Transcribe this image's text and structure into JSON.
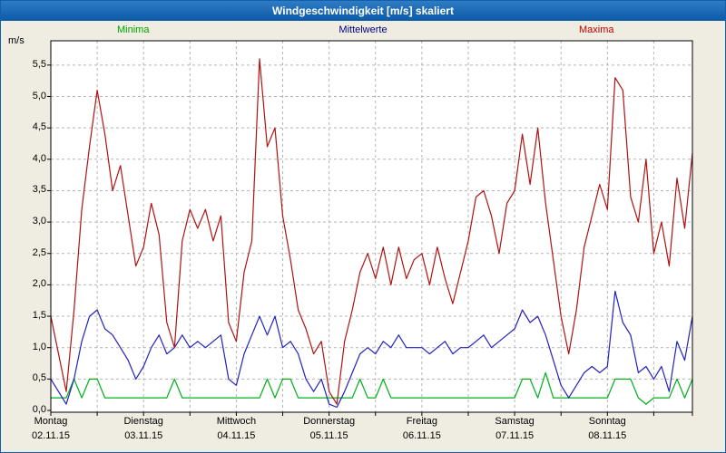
{
  "window": {
    "title": "Windgeschwindigkeit [m/s] skaliert"
  },
  "chart_data": {
    "type": "line",
    "title": "Windgeschwindigkeit [m/s] skaliert",
    "legend": [
      {
        "label": "Minima",
        "color": "#00a000"
      },
      {
        "label": "Mittelwerte",
        "color": "#000080"
      },
      {
        "label": "Maxima",
        "color": "#c00000"
      }
    ],
    "y_axis": {
      "unit_label": "m/s",
      "min": 0,
      "max": 5.5,
      "tick_step": 0.5,
      "tick_labels": [
        "0,0",
        "0,5",
        "1,0",
        "1,5",
        "2,0",
        "2,5",
        "3,0",
        "3,5",
        "4,0",
        "4,5",
        "5,0",
        "5,5"
      ]
    },
    "x_axis": {
      "days": [
        {
          "name": "Montag",
          "date": "02.11.15"
        },
        {
          "name": "Dienstag",
          "date": "03.11.15"
        },
        {
          "name": "Mittwoch",
          "date": "04.11.15"
        },
        {
          "name": "Donnerstag",
          "date": "05.11.15"
        },
        {
          "name": "Freitag",
          "date": "06.11.15"
        },
        {
          "name": "Samstag",
          "date": "07.11.15"
        },
        {
          "name": "Sonntag",
          "date": "08.11.15"
        }
      ]
    },
    "grid": {
      "dashed": true,
      "h_step": 0.5,
      "v_steps_per_day": 2
    },
    "points_per_day": 12,
    "series": [
      {
        "name": "Minima",
        "color": "#00b018",
        "values": [
          0.2,
          0.2,
          0.2,
          0.5,
          0.2,
          0.5,
          0.5,
          0.2,
          0.2,
          0.2,
          0.2,
          0.2,
          0.2,
          0.2,
          0.2,
          0.2,
          0.5,
          0.2,
          0.2,
          0.2,
          0.2,
          0.2,
          0.2,
          0.2,
          0.2,
          0.2,
          0.2,
          0.2,
          0.5,
          0.2,
          0.5,
          0.5,
          0.2,
          0.2,
          0.2,
          0.2,
          0.2,
          0.2,
          0.2,
          0.2,
          0.5,
          0.2,
          0.2,
          0.5,
          0.2,
          0.2,
          0.2,
          0.2,
          0.2,
          0.2,
          0.2,
          0.2,
          0.2,
          0.2,
          0.2,
          0.2,
          0.2,
          0.2,
          0.2,
          0.2,
          0.2,
          0.5,
          0.5,
          0.2,
          0.6,
          0.2,
          0.2,
          0.2,
          0.2,
          0.2,
          0.2,
          0.2,
          0.2,
          0.5,
          0.5,
          0.5,
          0.2,
          0.1,
          0.2,
          0.2,
          0.2,
          0.5,
          0.2,
          0.5
        ]
      },
      {
        "name": "Mittelwerte",
        "color": "#2222c0",
        "values": [
          0.5,
          0.3,
          0.1,
          0.5,
          1.1,
          1.5,
          1.6,
          1.3,
          1.2,
          1.0,
          0.8,
          0.5,
          0.7,
          1.0,
          1.2,
          0.9,
          1.0,
          1.2,
          1.0,
          1.1,
          1.0,
          1.1,
          1.2,
          0.5,
          0.4,
          0.9,
          1.2,
          1.5,
          1.2,
          1.5,
          1.0,
          1.1,
          0.9,
          0.5,
          0.3,
          0.5,
          0.1,
          0.05,
          0.3,
          0.6,
          0.9,
          1.0,
          0.9,
          1.1,
          1.0,
          1.2,
          1.0,
          1.0,
          1.0,
          0.9,
          1.0,
          1.1,
          0.9,
          1.0,
          1.0,
          1.1,
          1.2,
          1.0,
          1.1,
          1.2,
          1.3,
          1.6,
          1.4,
          1.5,
          1.2,
          0.8,
          0.4,
          0.2,
          0.4,
          0.6,
          0.7,
          0.6,
          0.7,
          1.9,
          1.4,
          1.2,
          0.6,
          0.7,
          0.5,
          0.7,
          0.3,
          1.1,
          0.8,
          1.5
        ]
      },
      {
        "name": "Maxima",
        "color": "#b01212",
        "values": [
          1.5,
          0.9,
          0.3,
          1.6,
          3.2,
          4.2,
          5.1,
          4.4,
          3.5,
          3.9,
          3.1,
          2.3,
          2.6,
          3.3,
          2.8,
          1.4,
          1.0,
          2.7,
          3.2,
          2.9,
          3.2,
          2.7,
          3.1,
          1.4,
          1.1,
          2.2,
          2.7,
          5.6,
          4.2,
          4.5,
          3.1,
          2.4,
          1.6,
          1.3,
          0.9,
          1.1,
          0.3,
          0.1,
          1.1,
          1.6,
          2.2,
          2.5,
          2.1,
          2.6,
          2.0,
          2.6,
          2.1,
          2.4,
          2.5,
          2.0,
          2.6,
          2.1,
          1.7,
          2.2,
          2.7,
          3.4,
          3.5,
          3.1,
          2.5,
          3.3,
          3.5,
          4.4,
          3.6,
          4.5,
          3.3,
          2.4,
          1.5,
          0.9,
          1.6,
          2.6,
          3.1,
          3.6,
          3.2,
          5.3,
          5.1,
          3.4,
          3.0,
          4.0,
          2.5,
          3.0,
          2.3,
          3.7,
          2.9,
          4.1
        ]
      }
    ]
  }
}
